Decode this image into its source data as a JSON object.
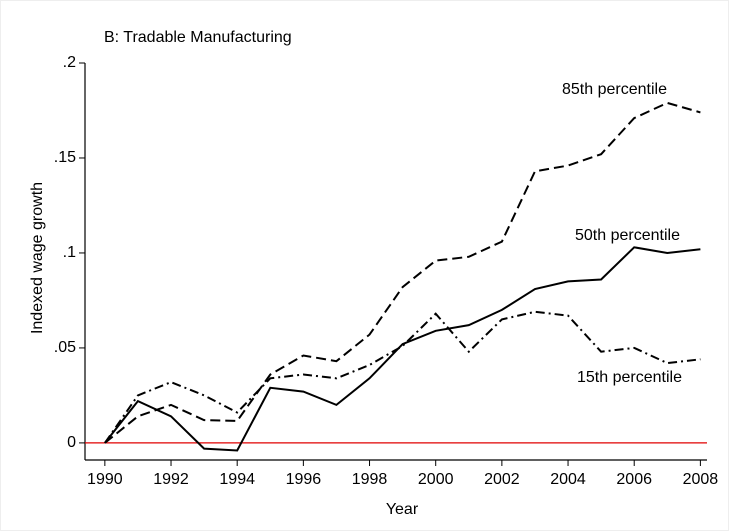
{
  "chart_data": {
    "type": "line",
    "title": "B: Tradable Manufacturing",
    "x_label": "Year",
    "y_label": "Indexed wage growth",
    "x": [
      1990,
      1991,
      1992,
      1993,
      1994,
      1995,
      1996,
      1997,
      1998,
      1999,
      2000,
      2001,
      2002,
      2003,
      2004,
      2005,
      2006,
      2007,
      2008
    ],
    "series": [
      {
        "name": "85th percentile",
        "color": "#000000",
        "dash": "dashed",
        "values": [
          0,
          0.014,
          0.02,
          0.012,
          0.0116,
          0.036,
          0.046,
          0.043,
          0.057,
          0.082,
          0.096,
          0.098,
          0.106,
          0.143,
          0.146,
          0.152,
          0.171,
          0.179,
          0.174
        ]
      },
      {
        "name": "50th percentile",
        "color": "#000000",
        "dash": "solid",
        "values": [
          0,
          0.022,
          0.014,
          -0.003,
          -0.004,
          0.029,
          0.027,
          0.02,
          0.034,
          0.052,
          0.059,
          0.062,
          0.07,
          0.081,
          0.085,
          0.086,
          0.103,
          0.1,
          0.102
        ]
      },
      {
        "name": "15th percentile",
        "color": "#000000",
        "dash": "dashdot",
        "values": [
          0,
          0.025,
          0.032,
          0.025,
          0.016,
          0.034,
          0.036,
          0.034,
          0.041,
          0.051,
          0.068,
          0.048,
          0.065,
          0.069,
          0.067,
          0.048,
          0.05,
          0.042,
          0.044
        ]
      }
    ],
    "xlim": [
      1989.4,
      2008.2
    ],
    "xticks": [
      1990,
      1992,
      1994,
      1996,
      1998,
      2000,
      2002,
      2004,
      2006,
      2008
    ],
    "ylim": [
      -0.009,
      0.2
    ],
    "yticks": [
      0,
      {
        "value": 0.05,
        "label": ".05"
      },
      {
        "value": 0.1,
        "label": ".1"
      },
      {
        "value": 0.15,
        "label": ".15"
      },
      {
        "value": 0.2,
        "label": ".2"
      }
    ],
    "reference_line": {
      "value": 0,
      "color": "#e00000"
    },
    "grid": false
  }
}
